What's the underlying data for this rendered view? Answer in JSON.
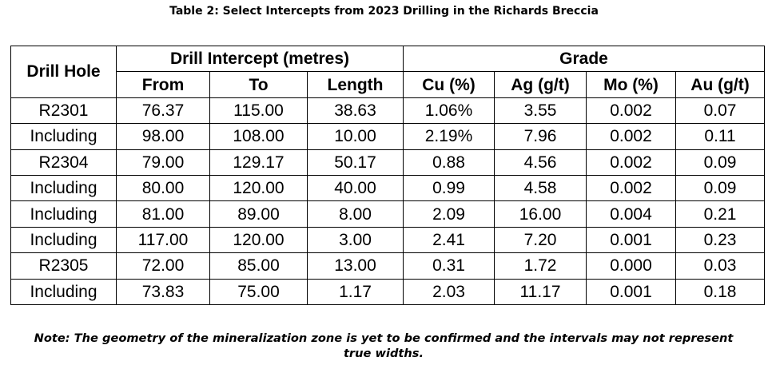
{
  "title": "Table 2: Select Intercepts from 2023 Drilling in the Richards Breccia",
  "table": {
    "group_headers": [
      "Drill Hole",
      "Drill Intercept (metres)",
      "Grade"
    ],
    "columns": [
      "From",
      "To",
      "Length",
      "Cu (%)",
      "Ag (g/t)",
      "Mo (%)",
      "Au (g/t)"
    ],
    "rows": [
      [
        "R2301",
        "76.37",
        "115.00",
        "38.63",
        "1.06%",
        "3.55",
        "0.002",
        "0.07"
      ],
      [
        "Including",
        "98.00",
        "108.00",
        "10.00",
        "2.19%",
        "7.96",
        "0.002",
        "0.11"
      ],
      [
        "R2304",
        "79.00",
        "129.17",
        "50.17",
        "0.88",
        "4.56",
        "0.002",
        "0.09"
      ],
      [
        "Including",
        "80.00",
        "120.00",
        "40.00",
        "0.99",
        "4.58",
        "0.002",
        "0.09"
      ],
      [
        "Including",
        "81.00",
        "89.00",
        "8.00",
        "2.09",
        "16.00",
        "0.004",
        "0.21"
      ],
      [
        "Including",
        "117.00",
        "120.00",
        "3.00",
        "2.41",
        "7.20",
        "0.001",
        "0.23"
      ],
      [
        "R2305",
        "72.00",
        "85.00",
        "13.00",
        "0.31",
        "1.72",
        "0.000",
        "0.03"
      ],
      [
        "Including",
        "73.83",
        "75.00",
        "1.17",
        "2.03",
        "11.17",
        "0.001",
        "0.18"
      ]
    ]
  },
  "note": "Note: The geometry of the mineralization zone is yet to be confirmed and the intervals may not represent true widths."
}
